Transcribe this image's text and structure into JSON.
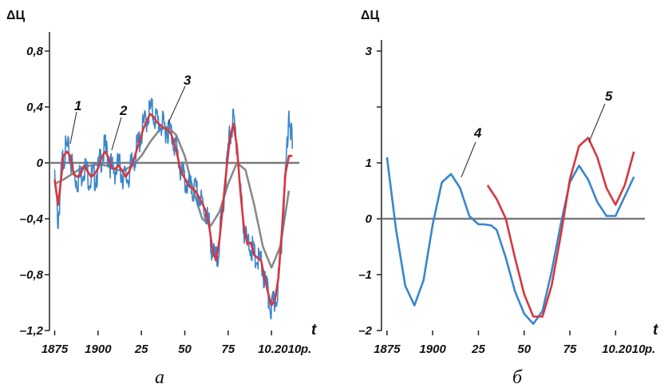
{
  "chart_data": [
    {
      "type": "line",
      "panel_caption": "a",
      "ylabel": "ΔЦ",
      "xlabel": "t",
      "x_unit_label": "р.",
      "ylim": [
        -1.2,
        0.8
      ],
      "xlim": [
        1872,
        2016
      ],
      "yticks": [
        0.8,
        0.4,
        0,
        -0.4,
        -0.8,
        -1.2
      ],
      "ytick_labels": [
        "0,8",
        "0,4",
        "0",
        "–0,4",
        "–0,8",
        "–1,2"
      ],
      "xticks": [
        1875,
        1900,
        1925,
        1950,
        1975,
        2000
      ],
      "xtick_labels": [
        "1875",
        "1900",
        "25",
        "50",
        "75",
        "10.2010"
      ],
      "zero_line": true,
      "series": [
        {
          "name": "1",
          "color": "#3a86cc",
          "noisy": true,
          "x": [
            1875,
            1877,
            1879,
            1880,
            1882,
            1884,
            1886,
            1888,
            1890,
            1892,
            1894,
            1896,
            1898,
            1900,
            1902,
            1904,
            1906,
            1908,
            1910,
            1912,
            1914,
            1916,
            1918,
            1920,
            1922,
            1924,
            1926,
            1928,
            1930,
            1932,
            1934,
            1936,
            1938,
            1940,
            1942,
            1944,
            1946,
            1948,
            1950,
            1952,
            1954,
            1956,
            1958,
            1960,
            1962,
            1964,
            1966,
            1968,
            1970,
            1972,
            1974,
            1976,
            1978,
            1980,
            1982,
            1984,
            1986,
            1988,
            1990,
            1992,
            1994,
            1996,
            1998,
            2000,
            2002,
            2004,
            2006,
            2008,
            2010,
            2012
          ],
          "y": [
            -0.15,
            -0.42,
            -0.05,
            0.06,
            0.1,
            0.05,
            -0.1,
            -0.12,
            -0.1,
            -0.02,
            -0.08,
            -0.12,
            -0.1,
            -0.06,
            0.05,
            0.1,
            0.05,
            -0.05,
            -0.05,
            -0.02,
            -0.08,
            -0.12,
            -0.08,
            0.0,
            0.08,
            0.17,
            0.25,
            0.32,
            0.38,
            0.35,
            0.3,
            0.28,
            0.25,
            0.25,
            0.22,
            0.15,
            0.05,
            -0.08,
            -0.12,
            -0.18,
            -0.2,
            -0.2,
            -0.25,
            -0.3,
            -0.35,
            -0.45,
            -0.65,
            -0.72,
            -0.55,
            -0.3,
            -0.05,
            0.2,
            0.3,
            0.15,
            -0.2,
            -0.45,
            -0.6,
            -0.58,
            -0.68,
            -0.7,
            -0.72,
            -0.85,
            -0.95,
            -1.05,
            -1.0,
            -0.85,
            -0.5,
            -0.1,
            0.4,
            0.1
          ]
        },
        {
          "name": "2",
          "color": "#d8363e",
          "noisy": false,
          "x": [
            1875,
            1877,
            1879,
            1880,
            1882,
            1884,
            1886,
            1888,
            1890,
            1892,
            1894,
            1896,
            1898,
            1900,
            1902,
            1904,
            1906,
            1908,
            1910,
            1912,
            1914,
            1916,
            1918,
            1920,
            1922,
            1924,
            1926,
            1928,
            1930,
            1932,
            1934,
            1936,
            1938,
            1940,
            1942,
            1944,
            1946,
            1948,
            1950,
            1952,
            1954,
            1956,
            1958,
            1960,
            1962,
            1964,
            1966,
            1968,
            1970,
            1972,
            1974,
            1976,
            1978,
            1980,
            1982,
            1984,
            1986,
            1988,
            1990,
            1992,
            1994,
            1996,
            1998,
            2000,
            2002,
            2004,
            2006,
            2008,
            2010,
            2012
          ],
          "y": [
            -0.12,
            -0.3,
            -0.08,
            0.05,
            0.08,
            0.05,
            -0.08,
            -0.1,
            -0.08,
            -0.02,
            -0.06,
            -0.1,
            -0.08,
            -0.04,
            0.04,
            0.08,
            0.04,
            -0.04,
            -0.04,
            -0.02,
            -0.06,
            -0.1,
            -0.06,
            0.0,
            0.08,
            0.16,
            0.24,
            0.3,
            0.35,
            0.33,
            0.29,
            0.27,
            0.25,
            0.24,
            0.21,
            0.14,
            0.04,
            -0.07,
            -0.11,
            -0.16,
            -0.18,
            -0.2,
            -0.24,
            -0.29,
            -0.34,
            -0.45,
            -0.62,
            -0.7,
            -0.55,
            -0.3,
            -0.05,
            0.18,
            0.28,
            0.12,
            -0.2,
            -0.45,
            -0.58,
            -0.57,
            -0.66,
            -0.68,
            -0.7,
            -0.82,
            -0.93,
            -1.02,
            -0.98,
            -0.82,
            -0.48,
            -0.08,
            0.05,
            0.05
          ]
        },
        {
          "name": "3",
          "color": "#8a8a8a",
          "noisy": false,
          "x": [
            1875,
            1880,
            1885,
            1890,
            1895,
            1900,
            1905,
            1910,
            1915,
            1920,
            1925,
            1930,
            1935,
            1940,
            1945,
            1950,
            1955,
            1960,
            1965,
            1970,
            1975,
            1980,
            1985,
            1990,
            1995,
            2000,
            2005,
            2010
          ],
          "y": [
            -0.15,
            -0.12,
            -0.08,
            -0.04,
            -0.02,
            -0.01,
            -0.02,
            -0.05,
            -0.05,
            -0.02,
            0.05,
            0.15,
            0.23,
            0.26,
            0.2,
            0.05,
            -0.2,
            -0.4,
            -0.45,
            -0.35,
            -0.15,
            0.0,
            -0.05,
            -0.3,
            -0.6,
            -0.75,
            -0.6,
            -0.2
          ]
        }
      ],
      "callouts": [
        "1",
        "2",
        "3"
      ]
    },
    {
      "type": "line",
      "panel_caption": "б",
      "ylabel": "ΔЦ",
      "xlabel": "t",
      "x_unit_label": "р.",
      "ylim": [
        -2,
        3
      ],
      "xlim": [
        1872,
        2016
      ],
      "yticks": [
        3,
        2,
        1,
        0,
        -1,
        -2
      ],
      "ytick_labels": [
        "3",
        "",
        "1",
        "0",
        "–1",
        "–2"
      ],
      "xticks": [
        1875,
        1900,
        1925,
        1950,
        1975,
        2000
      ],
      "xtick_labels": [
        "1875",
        "1900",
        "25",
        "50",
        "75",
        "10.2010"
      ],
      "zero_line": true,
      "series": [
        {
          "name": "4",
          "color": "#3a86cc",
          "noisy": false,
          "x": [
            1875,
            1880,
            1885,
            1890,
            1895,
            1900,
            1905,
            1910,
            1915,
            1920,
            1925,
            1928,
            1932,
            1935,
            1940,
            1945,
            1950,
            1955,
            1960,
            1965,
            1970,
            1975,
            1980,
            1985,
            1990,
            1995,
            2000,
            2005,
            2010
          ],
          "y": [
            1.1,
            -0.2,
            -1.2,
            -1.55,
            -1.1,
            -0.1,
            0.65,
            0.8,
            0.55,
            0.05,
            -0.1,
            -0.1,
            -0.12,
            -0.2,
            -0.7,
            -1.3,
            -1.7,
            -1.88,
            -1.65,
            -0.95,
            -0.1,
            0.65,
            0.95,
            0.7,
            0.3,
            0.05,
            0.05,
            0.4,
            0.75
          ]
        },
        {
          "name": "5",
          "color": "#d8363e",
          "noisy": false,
          "x": [
            1930,
            1935,
            1940,
            1945,
            1950,
            1955,
            1960,
            1965,
            1970,
            1975,
            1980,
            1985,
            1990,
            1995,
            2000,
            2005,
            2010
          ],
          "y": [
            0.6,
            0.35,
            0.0,
            -0.7,
            -1.35,
            -1.75,
            -1.75,
            -1.2,
            -0.3,
            0.7,
            1.3,
            1.45,
            1.1,
            0.55,
            0.25,
            0.6,
            1.2
          ]
        }
      ],
      "callouts": [
        "4",
        "5"
      ]
    }
  ]
}
